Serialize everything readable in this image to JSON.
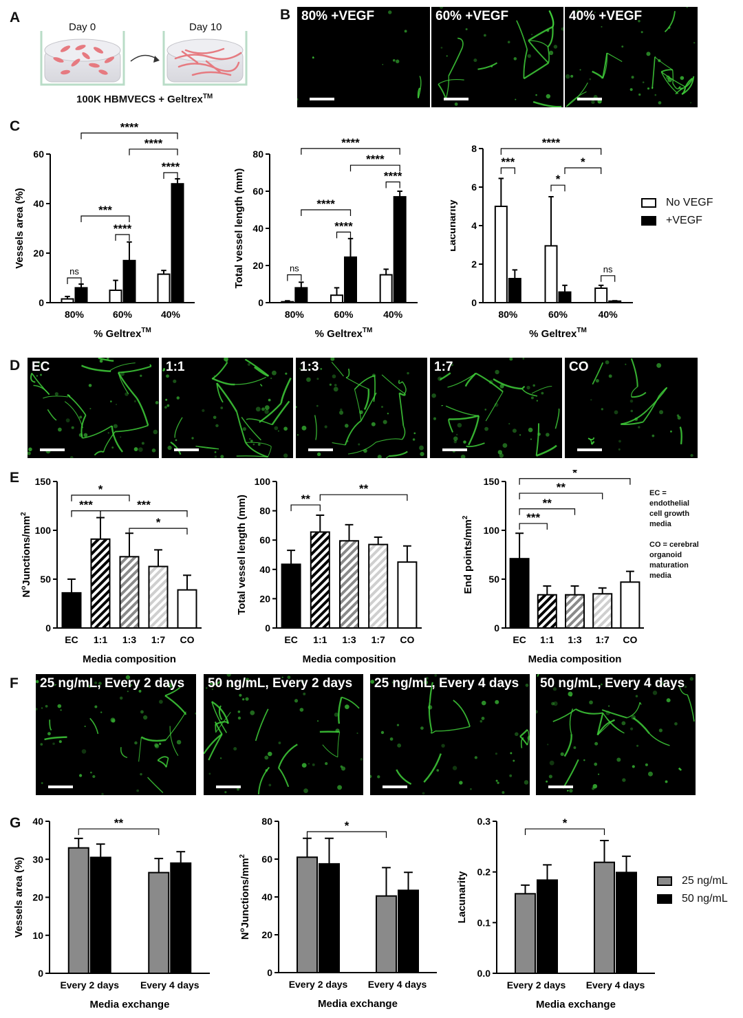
{
  "panel_letters": [
    "A",
    "B",
    "C",
    "D",
    "E",
    "F",
    "G"
  ],
  "panel_a": {
    "day0": "Day 0",
    "day10": "Day 10",
    "caption": "100K HBMVECS + Geltrex",
    "caption_sup": "TM"
  },
  "panel_b": {
    "images": [
      "80% +VEGF",
      "60% +VEGF",
      "40% +VEGF"
    ]
  },
  "panel_d": {
    "images": [
      "EC",
      "1:1",
      "1:3",
      "1:7",
      "CO"
    ]
  },
  "panel_f": {
    "images": [
      "25 ng/mL,  Every 2 days",
      "50 ng/mL,  Every 2 days",
      "25 ng/mL,  Every 4 days",
      "50 ng/mL,  Every 4 days"
    ]
  },
  "legend_c": {
    "items": [
      "No VEGF",
      "+VEGF"
    ]
  },
  "legend_g": {
    "items": [
      "25 ng/mL",
      "50 ng/mL"
    ]
  },
  "colors": {
    "vessel_green": "#3fcf3a",
    "gray_bar": "#8a8a8a",
    "black": "#000000"
  },
  "note_e": {
    "lines": [
      "EC =",
      "endothelial",
      "cell growth",
      "media",
      "",
      "CO = cerebral",
      "organoid",
      "maturation",
      "media"
    ]
  },
  "chart_data": [
    {
      "id": "c1",
      "type": "bar",
      "ylabel": "Vessels area (%)",
      "xlabel": "% Geltrex",
      "xlabel_sup": "TM",
      "ylim": [
        0,
        60
      ],
      "yticks": [
        0,
        20,
        40,
        60
      ],
      "categories": [
        "80%",
        "60%",
        "40%"
      ],
      "series": [
        {
          "name": "No VEGF",
          "style": "white",
          "values": [
            1.5,
            5,
            11.5
          ],
          "errors": [
            1,
            4,
            1.5
          ]
        },
        {
          "name": "+VEGF",
          "style": "black",
          "values": [
            6,
            17,
            48
          ],
          "errors": [
            1.5,
            7.5,
            2
          ]
        }
      ],
      "annotations": [
        {
          "text": "ns",
          "a": [
            0,
            0
          ],
          "b": [
            0,
            1
          ],
          "y": 10
        },
        {
          "text": "****",
          "a": [
            1,
            0
          ],
          "b": [
            1,
            1
          ],
          "y": 27.5
        },
        {
          "text": "***",
          "a": [
            0,
            1
          ],
          "b": [
            1,
            1
          ],
          "y": 35
        },
        {
          "text": "****",
          "a": [
            2,
            0
          ],
          "b": [
            2,
            1
          ],
          "y": 52.5
        },
        {
          "text": "****",
          "a": [
            1,
            1
          ],
          "b": [
            2,
            1
          ],
          "y": 62
        },
        {
          "text": "****",
          "a": [
            0,
            1
          ],
          "b": [
            2,
            1
          ],
          "y": 68.5
        }
      ]
    },
    {
      "id": "c2",
      "type": "bar",
      "ylabel": "Total vessel length (mm)",
      "xlabel": "% Geltrex",
      "xlabel_sup": "TM",
      "ylim": [
        0,
        80
      ],
      "yticks": [
        0,
        20,
        40,
        60,
        80
      ],
      "categories": [
        "80%",
        "60%",
        "40%"
      ],
      "series": [
        {
          "name": "No VEGF",
          "style": "white",
          "values": [
            0.5,
            4,
            15
          ],
          "errors": [
            0.5,
            4,
            3
          ]
        },
        {
          "name": "+VEGF",
          "style": "black",
          "values": [
            8,
            24.5,
            57
          ],
          "errors": [
            3,
            10,
            3
          ]
        }
      ],
      "annotations": [
        {
          "text": "ns",
          "a": [
            0,
            0
          ],
          "b": [
            0,
            1
          ],
          "y": 15
        },
        {
          "text": "****",
          "a": [
            1,
            0
          ],
          "b": [
            1,
            1
          ],
          "y": 38
        },
        {
          "text": "****",
          "a": [
            0,
            1
          ],
          "b": [
            1,
            1
          ],
          "y": 50
        },
        {
          "text": "****",
          "a": [
            2,
            0
          ],
          "b": [
            2,
            1
          ],
          "y": 65
        },
        {
          "text": "****",
          "a": [
            1,
            1
          ],
          "b": [
            2,
            1
          ],
          "y": 74
        },
        {
          "text": "****",
          "a": [
            0,
            1
          ],
          "b": [
            2,
            1
          ],
          "y": 83
        }
      ]
    },
    {
      "id": "c3",
      "type": "bar",
      "ylabel": "Lacunarity",
      "xlabel": "%  Geltrex",
      "xlabel_sup": "TM",
      "ylim": [
        0,
        8
      ],
      "yticks": [
        0,
        2,
        4,
        6,
        8
      ],
      "categories": [
        "80%",
        "60%",
        "40%"
      ],
      "series": [
        {
          "name": "No VEGF",
          "style": "white",
          "values": [
            5,
            2.95,
            0.75
          ],
          "errors": [
            1.45,
            2.55,
            0.15
          ]
        },
        {
          "name": "+VEGF",
          "style": "black",
          "values": [
            1.25,
            0.55,
            0.08
          ],
          "errors": [
            0.45,
            0.35,
            0.02
          ]
        }
      ],
      "annotations": [
        {
          "text": "***",
          "a": [
            0,
            0
          ],
          "b": [
            0,
            1
          ],
          "y": 7
        },
        {
          "text": "*",
          "a": [
            1,
            0
          ],
          "b": [
            1,
            1
          ],
          "y": 6.1
        },
        {
          "text": "*",
          "a": [
            1,
            1
          ],
          "b": [
            2,
            0
          ],
          "y": 7
        },
        {
          "text": "ns",
          "a": [
            2,
            0
          ],
          "b": [
            2,
            1
          ],
          "y": 1.4
        },
        {
          "text": "****",
          "a": [
            0,
            0
          ],
          "b": [
            2,
            0
          ],
          "y": 8
        }
      ]
    },
    {
      "id": "e1",
      "type": "bar",
      "ylabel": "N",
      "ylabel_sup": "o",
      "ylabel_rest": "Junctions/mm",
      "ylabel_sup2": "2",
      "xlabel": "Media composition",
      "ylim": [
        0,
        150
      ],
      "yticks": [
        0,
        50,
        100,
        150
      ],
      "categories": [
        "EC",
        "1:1",
        "1:3",
        "1:7",
        "CO"
      ],
      "styles": [
        "black",
        "hatch-black",
        "hatch-gray",
        "hatch-light",
        "white"
      ],
      "values": [
        36,
        91,
        73,
        63,
        39
      ],
      "errors": [
        14,
        22,
        24,
        17,
        15
      ],
      "annotations": [
        {
          "text": "***",
          "a": 0,
          "b": 1,
          "y": 120
        },
        {
          "text": "*",
          "a": 0,
          "b": 2,
          "y": 136
        },
        {
          "text": "***",
          "a": 1,
          "b": 4,
          "y": 120
        },
        {
          "text": "*",
          "a": 2,
          "b": 4,
          "y": 102
        }
      ]
    },
    {
      "id": "e2",
      "type": "bar",
      "ylabel": "Total vessel length (mm)",
      "xlabel": "Media composition",
      "ylim": [
        0,
        100
      ],
      "yticks": [
        0,
        20,
        40,
        60,
        80,
        100
      ],
      "categories": [
        "EC",
        "1:1",
        "1:3",
        "1:7",
        "CO"
      ],
      "styles": [
        "black",
        "hatch-black",
        "hatch-gray",
        "hatch-light",
        "white"
      ],
      "values": [
        43.5,
        65.5,
        59.5,
        57,
        45
      ],
      "errors": [
        9.5,
        11.5,
        11,
        5,
        11
      ],
      "annotations": [
        {
          "text": "**",
          "a": 0,
          "b": 1,
          "y": 84
        },
        {
          "text": "**",
          "a": 1,
          "b": 4,
          "y": 91
        }
      ]
    },
    {
      "id": "e3",
      "type": "bar",
      "ylabel": "End points/mm",
      "ylabel_sup": "2",
      "xlabel": "Media composition",
      "ylim": [
        0,
        150
      ],
      "yticks": [
        0,
        50,
        100,
        150
      ],
      "categories": [
        "EC",
        "1:1",
        "1:3",
        "1:7",
        "CO"
      ],
      "styles": [
        "black",
        "hatch-black",
        "hatch-gray",
        "hatch-light",
        "white"
      ],
      "values": [
        71,
        34,
        34,
        35,
        47
      ],
      "errors": [
        26,
        9,
        9,
        6,
        11
      ],
      "annotations": [
        {
          "text": "***",
          "a": 0,
          "b": 1,
          "y": 107
        },
        {
          "text": "**",
          "a": 0,
          "b": 2,
          "y": 122
        },
        {
          "text": "**",
          "a": 0,
          "b": 3,
          "y": 138
        },
        {
          "text": "*",
          "a": 0,
          "b": 4,
          "y": 153
        }
      ]
    },
    {
      "id": "g1",
      "type": "bar",
      "ylabel": "Vessels area (%)",
      "xlabel": "Media exchange",
      "ylim": [
        0,
        40
      ],
      "yticks": [
        0,
        10,
        20,
        30,
        40
      ],
      "categories": [
        "Every 2 days",
        "Every 4 days"
      ],
      "series": [
        {
          "name": "25 ng/mL",
          "style": "gray",
          "values": [
            33,
            26.5
          ],
          "errors": [
            2.5,
            3.7
          ]
        },
        {
          "name": "50 ng/mL",
          "style": "black",
          "values": [
            30.5,
            29
          ],
          "errors": [
            3.5,
            3
          ]
        }
      ],
      "annotations": [
        {
          "text": "**",
          "a": [
            0,
            0
          ],
          "b": [
            1,
            0
          ],
          "y": 38
        }
      ]
    },
    {
      "id": "g2",
      "type": "bar",
      "ylabel": "N",
      "ylabel_sup": "o",
      "ylabel_rest": "Junctions/mm",
      "ylabel_sup2": "2",
      "xlabel": "Media exchange",
      "ylim": [
        0,
        80
      ],
      "yticks": [
        0,
        20,
        40,
        60,
        80
      ],
      "categories": [
        "Every 2 days",
        "Every 4 days"
      ],
      "series": [
        {
          "name": "25 ng/mL",
          "style": "gray",
          "values": [
            61,
            40.5
          ],
          "errors": [
            10,
            15
          ]
        },
        {
          "name": "50 ng/mL",
          "style": "black",
          "values": [
            57.5,
            43.5
          ],
          "errors": [
            13.5,
            9.5
          ]
        }
      ],
      "annotations": [
        {
          "text": "*",
          "a": [
            0,
            0
          ],
          "b": [
            1,
            0
          ],
          "y": 74.5
        }
      ]
    },
    {
      "id": "g3",
      "type": "bar",
      "ylabel": "Lacunarity",
      "xlabel": "Media exchange",
      "ylim": [
        0,
        0.3
      ],
      "yticks": [
        "0.0",
        "0.1",
        "0.2",
        "0.3"
      ],
      "categories": [
        "Every 2 days",
        "Every 4 days"
      ],
      "series": [
        {
          "name": "25 ng/mL",
          "style": "gray",
          "values": [
            0.157,
            0.219
          ],
          "errors": [
            0.017,
            0.043
          ]
        },
        {
          "name": "50 ng/mL",
          "style": "black",
          "values": [
            0.184,
            0.199
          ],
          "errors": [
            0.03,
            0.032
          ]
        }
      ],
      "annotations": [
        {
          "text": "*",
          "a": [
            0,
            0
          ],
          "b": [
            1,
            0
          ],
          "y": 0.285
        }
      ]
    }
  ]
}
